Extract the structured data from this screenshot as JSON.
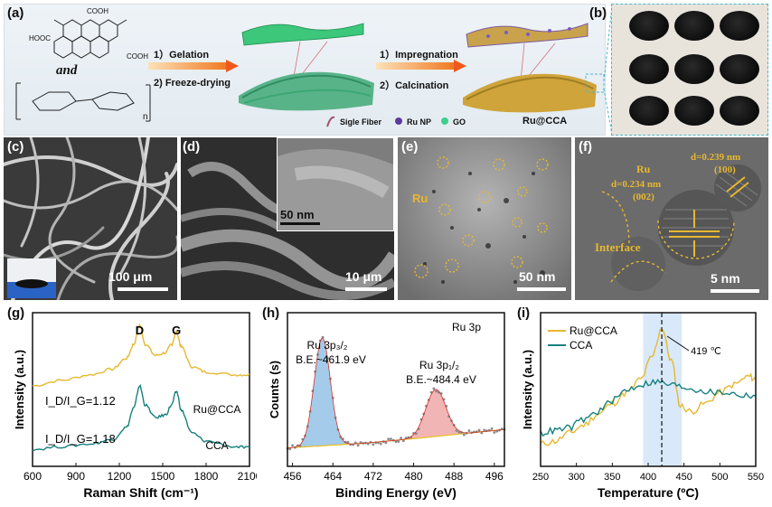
{
  "panels": {
    "a": {
      "label": "(a)",
      "and_text": "and",
      "n_text": "n",
      "step1_a": "1）Gelation",
      "step1_b": "2) Freeze-drying",
      "step2_a": "1）Impregnation",
      "step2_b": "2）Calcination",
      "legend": [
        "Sigle Fiber",
        "Ru NP",
        "GO",
        "Ru@CCA"
      ],
      "cooh": [
        "COOH",
        "HOOC",
        "COOH"
      ]
    },
    "b": {
      "label": "(b)"
    },
    "c": {
      "label": "(c)",
      "scalebar": "100 μm"
    },
    "d": {
      "label": "(d)",
      "inset_scalebar": "50 nm",
      "scalebar": "10 μm"
    },
    "e": {
      "label": "(e)",
      "ru_label": "Ru",
      "scalebar": "50 nm"
    },
    "f": {
      "label": "(f)",
      "ru_label": "Ru",
      "d1": "d=0.234 nm",
      "d1_plane": "(002)",
      "d2": "d=0.239 nm",
      "d2_plane": "(100)",
      "interface": "Interface",
      "scalebar": "5 nm"
    },
    "g": {
      "label": "(g)"
    },
    "h": {
      "label": "(h)"
    },
    "i": {
      "label": "(i)"
    }
  },
  "colors": {
    "ru_cca": "#e6b830",
    "cca": "#17807e",
    "xps_fill_1": "#5aa0d8",
    "xps_fill_2": "#e8787a",
    "highlight": "#cfe3f7"
  },
  "chart_data": [
    {
      "panel": "g",
      "type": "line",
      "xlabel": "Raman Shift (cm⁻¹)",
      "ylabel": "Intensity (a.u.)",
      "xlim": [
        600,
        2100
      ],
      "xticks": [
        "600",
        "900",
        "1200",
        "1500",
        "1800",
        "2100"
      ],
      "peak_labels": [
        "D",
        "G"
      ],
      "ratio_ru_cca": "I_D/I_G=1.12",
      "ratio_cca": "I_D/I_G=1.18",
      "series": [
        {
          "name": "Ru@CCA",
          "x": [
            600,
            800,
            1000,
            1150,
            1250,
            1300,
            1340,
            1380,
            1450,
            1520,
            1560,
            1595,
            1630,
            1700,
            1800,
            2000,
            2100
          ],
          "y": [
            0.56,
            0.6,
            0.64,
            0.68,
            0.76,
            0.86,
            1.0,
            0.86,
            0.78,
            0.8,
            0.86,
            0.95,
            0.84,
            0.7,
            0.66,
            0.64,
            0.64
          ]
        },
        {
          "name": "CCA",
          "x": [
            600,
            800,
            1000,
            1150,
            1250,
            1300,
            1340,
            1380,
            1450,
            1520,
            1560,
            1595,
            1630,
            1700,
            1800,
            2000,
            2100
          ],
          "y": [
            0.1,
            0.12,
            0.14,
            0.17,
            0.26,
            0.4,
            0.56,
            0.42,
            0.33,
            0.35,
            0.42,
            0.52,
            0.38,
            0.22,
            0.16,
            0.12,
            0.11
          ]
        }
      ]
    },
    {
      "panel": "h",
      "type": "line",
      "title": "Ru 3p",
      "xlabel": "Binding Energy (eV)",
      "ylabel": "Counts (s)",
      "xlim": [
        455,
        498
      ],
      "xticks": [
        "456",
        "464",
        "472",
        "480",
        "488",
        "496"
      ],
      "peak1": "Ru 3p₃/₂",
      "peak1_be": "B.E.~461.9 eV",
      "peak2": "Ru 3p₁/₂",
      "peak2_be": "B.E.~484.4 eV",
      "peaks": [
        {
          "center": 461.9,
          "height": 0.78,
          "width": 1.6
        },
        {
          "center": 484.4,
          "height": 0.34,
          "width": 2.0
        }
      ],
      "baseline": [
        [
          455,
          0.02
        ],
        [
          470,
          0.05
        ],
        [
          480,
          0.08
        ],
        [
          498,
          0.14
        ]
      ]
    },
    {
      "panel": "i",
      "type": "line",
      "xlabel": "Temperature (ºC)",
      "ylabel": "Intensity (a.u.)",
      "xlim": [
        250,
        550
      ],
      "xticks": [
        "250",
        "300",
        "350",
        "400",
        "450",
        "500",
        "550"
      ],
      "annotation": "419 ℃",
      "annotation_x": 419,
      "highlight_range": [
        393,
        447
      ],
      "series": [
        {
          "name": "Ru@CCA",
          "x": [
            250,
            270,
            290,
            310,
            330,
            350,
            370,
            390,
            405,
            419,
            432,
            445,
            460,
            480,
            500,
            520,
            540,
            550
          ],
          "y": [
            0.12,
            0.14,
            0.2,
            0.26,
            0.34,
            0.42,
            0.5,
            0.6,
            0.76,
            0.98,
            0.74,
            0.4,
            0.36,
            0.42,
            0.5,
            0.56,
            0.62,
            0.6
          ]
        },
        {
          "name": "CCA",
          "x": [
            250,
            270,
            290,
            310,
            330,
            350,
            370,
            390,
            410,
            430,
            450,
            470,
            490,
            510,
            530,
            550
          ],
          "y": [
            0.2,
            0.22,
            0.24,
            0.3,
            0.36,
            0.44,
            0.52,
            0.56,
            0.58,
            0.56,
            0.54,
            0.52,
            0.5,
            0.5,
            0.48,
            0.48
          ]
        }
      ]
    }
  ]
}
